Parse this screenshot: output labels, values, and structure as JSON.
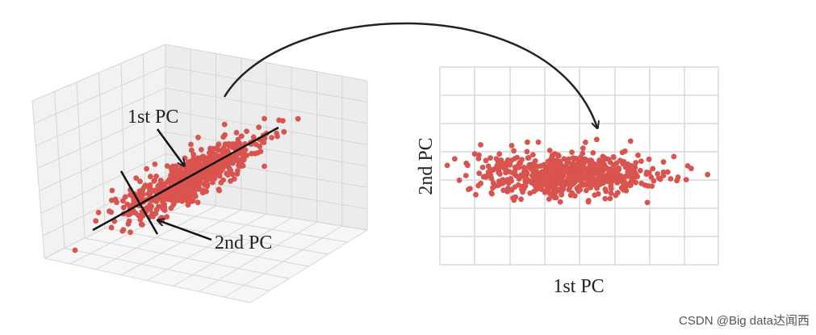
{
  "left_plot": {
    "first_pc_label": "1st PC",
    "second_pc_label": "2nd PC"
  },
  "right_plot": {
    "x_label": "1st PC",
    "y_label": "2nd PC"
  },
  "watermark": "CSDN @Big data达闻西"
}
